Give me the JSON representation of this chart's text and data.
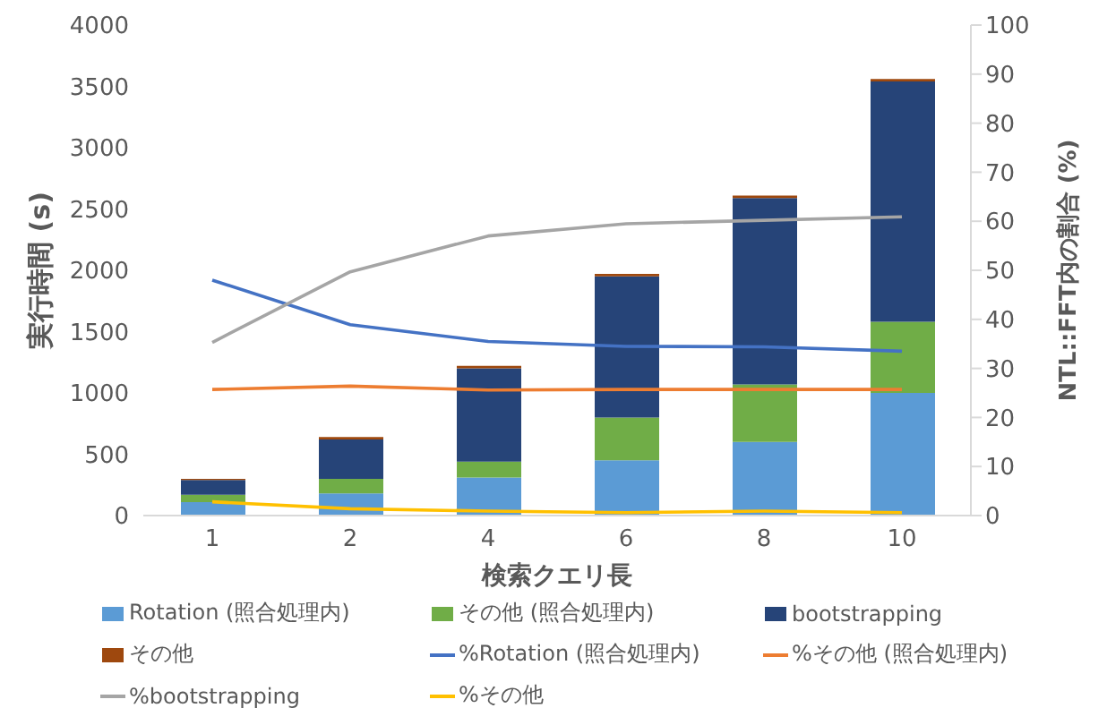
{
  "chart_data": {
    "type": "bar",
    "stacked": true,
    "xlabel": "検索クエリ長",
    "ylabel": "実行時間 (s)",
    "y2label": "NTL::FFT内の割合 (%)",
    "categories": [
      "1",
      "2",
      "4",
      "6",
      "8",
      "10"
    ],
    "ylim": [
      0,
      4000
    ],
    "yticks": [
      0,
      500,
      1000,
      1500,
      2000,
      2500,
      3000,
      3500,
      4000
    ],
    "y2lim": [
      0,
      100
    ],
    "y2ticks": [
      0,
      10,
      20,
      30,
      40,
      50,
      60,
      70,
      80,
      90,
      100
    ],
    "grid": false,
    "legend": "bottom",
    "marker": "none",
    "line_style": "solid",
    "series": [
      {
        "name": "Rotation (照合処理内)",
        "color": "#5b9bd5",
        "values": [
          110,
          180,
          310,
          450,
          600,
          1000
        ]
      },
      {
        "name": "その他 (照合処理内)",
        "color": "#70ad47",
        "values": [
          60,
          120,
          130,
          350,
          470,
          580
        ]
      },
      {
        "name": "bootstrapping",
        "color": "#264478",
        "values": [
          120,
          320,
          760,
          1150,
          1520,
          1960
        ]
      },
      {
        "name": "その他",
        "color": "#9e480e",
        "values": [
          10,
          20,
          20,
          20,
          20,
          20
        ]
      },
      {
        "name": "%Rotation (照合処理内)",
        "type": "line",
        "axis": "y2",
        "color": "#4472c4",
        "values": [
          48,
          38.9,
          35.5,
          34.5,
          34.4,
          33.5
        ]
      },
      {
        "name": "%その他 (照合処理内)",
        "type": "line",
        "axis": "y2",
        "color": "#ed7d31",
        "values": [
          25.7,
          26.4,
          25.6,
          25.7,
          25.7,
          25.7
        ]
      },
      {
        "name": "%bootstrapping",
        "type": "line",
        "axis": "y2",
        "color": "#a5a5a5",
        "values": [
          35.3,
          49.7,
          57,
          59.5,
          60.2,
          60.9
        ]
      },
      {
        "name": "%その他",
        "type": "line",
        "axis": "y2",
        "color": "#ffc000",
        "values": [
          2.8,
          1.4,
          0.9,
          0.6,
          0.9,
          0.6
        ]
      }
    ]
  }
}
